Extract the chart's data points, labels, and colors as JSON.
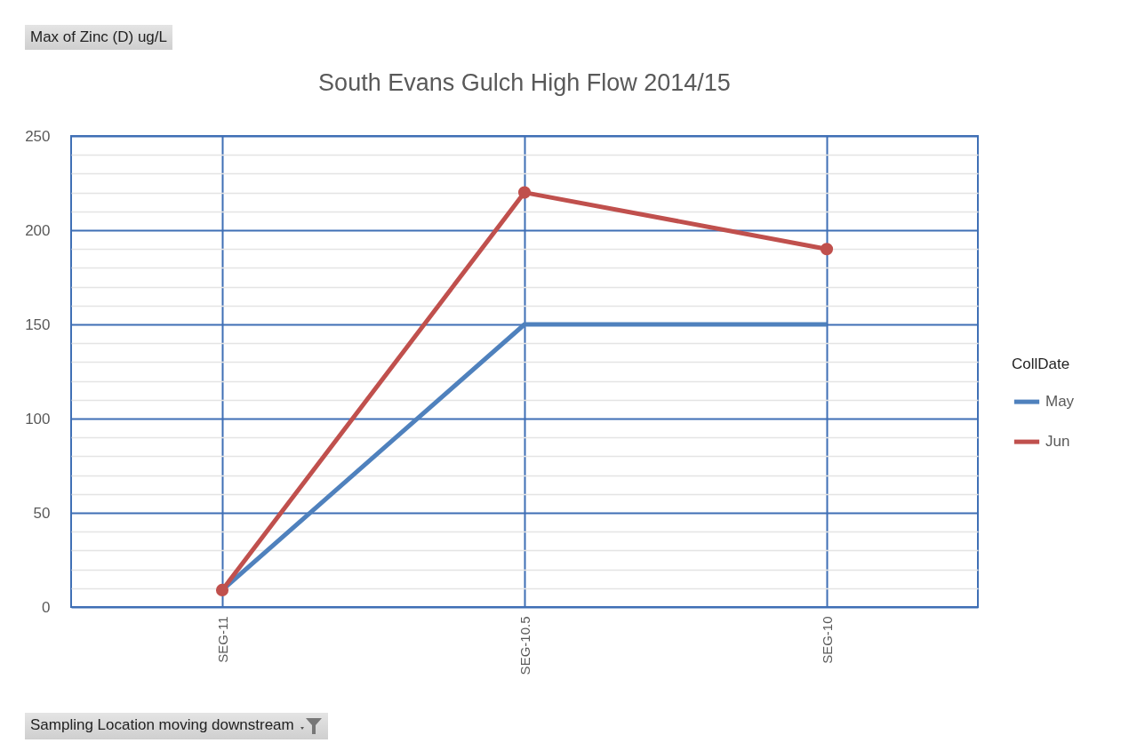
{
  "chart_data": {
    "type": "line",
    "title": "South Evans Gulch High Flow 2014/15",
    "xlabel": "Sampling Location moving downstream",
    "annotations": [
      "Max of Zinc (D) ug/L"
    ],
    "legend_title": "CollDate",
    "categories": [
      "SEG-11",
      "SEG-10.5",
      "SEG-10"
    ],
    "series": [
      {
        "name": "May",
        "color": "#4f81bd",
        "values": [
          9,
          150,
          150
        ],
        "marker": "none"
      },
      {
        "name": "Jun",
        "color": "#c0504d",
        "values": [
          9,
          220,
          190
        ],
        "marker": "circle"
      }
    ],
    "ylim": [
      0,
      250
    ],
    "yticks": [
      0,
      {
        "value": 10,
        "label": null
      },
      {
        "value": 20,
        "label": null
      },
      {
        "value": 30,
        "label": null
      },
      {
        "value": 40,
        "label": null
      },
      50,
      {
        "value": 60,
        "label": null
      },
      {
        "value": 70,
        "label": null
      },
      {
        "value": 80,
        "label": null
      },
      {
        "value": 90,
        "label": null
      },
      100,
      {
        "value": 110,
        "label": null
      },
      {
        "value": 120,
        "label": null
      },
      {
        "value": 130,
        "label": null
      },
      {
        "value": 140,
        "label": null
      },
      150,
      {
        "value": 160,
        "label": null
      },
      {
        "value": 170,
        "label": null
      },
      {
        "value": 180,
        "label": null
      },
      {
        "value": 190,
        "label": null
      },
      200,
      {
        "value": 210,
        "label": null
      },
      {
        "value": 220,
        "label": null
      },
      {
        "value": 230,
        "label": null
      },
      {
        "value": 240,
        "label": null
      },
      250
    ],
    "grid": true,
    "legend": "right"
  }
}
